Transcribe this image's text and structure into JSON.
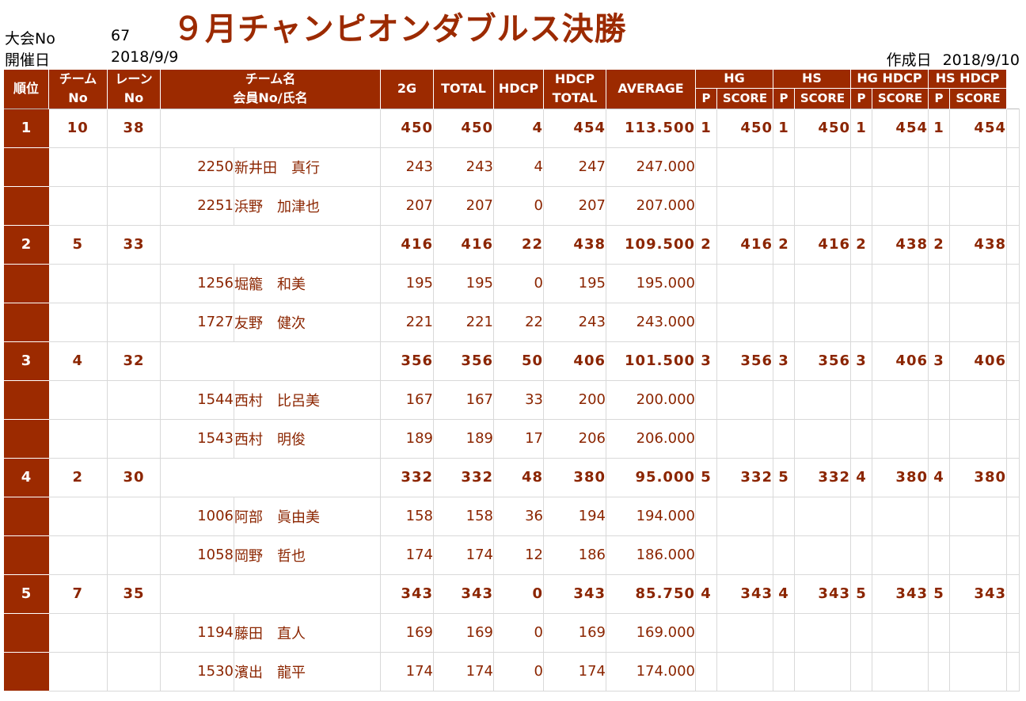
{
  "meta": {
    "event_label": "大会No",
    "event_no": "67",
    "date_label": "開催日",
    "date": "2018/9/9",
    "title": "９月チャンピオンダブルス決勝",
    "created_label": "作成日",
    "created_date": "2018/9/10"
  },
  "headers": {
    "rank": "順位",
    "team_no_top": "チーム",
    "team_no_bottom": "No",
    "lane_top": "レーン",
    "lane_bottom": "No",
    "team_name_top": "チーム名",
    "team_name_bottom": "会員No/氏名",
    "g2": "2G",
    "total": "TOTAL",
    "hdcp": "HDCP",
    "hdcp_total_top": "HDCP",
    "hdcp_total_bottom": "TOTAL",
    "average": "AVERAGE",
    "hg": "HG",
    "hs": "HS",
    "hg_hdcp": "HG HDCP",
    "hs_hdcp": "HS HDCP",
    "p": "P",
    "score": "SCORE"
  },
  "teams": [
    {
      "rank": "1",
      "team_no": "10",
      "lane": "38",
      "g2": "450",
      "total": "450",
      "hdcp": "4",
      "hdcp_total": "454",
      "average": "113.500",
      "hg_p": "1",
      "hg_score": "450",
      "hs_p": "1",
      "hs_score": "450",
      "hghd_p": "1",
      "hghd_score": "454",
      "hshd_p": "1",
      "hshd_score": "454",
      "members": [
        {
          "no": "2250",
          "name": "新井田　真行",
          "g2": "243",
          "total": "243",
          "hdcp": "4",
          "hdcp_total": "247",
          "average": "247.000"
        },
        {
          "no": "2251",
          "name": "浜野　加津也",
          "g2": "207",
          "total": "207",
          "hdcp": "0",
          "hdcp_total": "207",
          "average": "207.000"
        }
      ]
    },
    {
      "rank": "2",
      "team_no": "5",
      "lane": "33",
      "g2": "416",
      "total": "416",
      "hdcp": "22",
      "hdcp_total": "438",
      "average": "109.500",
      "hg_p": "2",
      "hg_score": "416",
      "hs_p": "2",
      "hs_score": "416",
      "hghd_p": "2",
      "hghd_score": "438",
      "hshd_p": "2",
      "hshd_score": "438",
      "members": [
        {
          "no": "1256",
          "name": "堀籠　和美",
          "g2": "195",
          "total": "195",
          "hdcp": "0",
          "hdcp_total": "195",
          "average": "195.000"
        },
        {
          "no": "1727",
          "name": "友野　健次",
          "g2": "221",
          "total": "221",
          "hdcp": "22",
          "hdcp_total": "243",
          "average": "243.000"
        }
      ]
    },
    {
      "rank": "3",
      "team_no": "4",
      "lane": "32",
      "g2": "356",
      "total": "356",
      "hdcp": "50",
      "hdcp_total": "406",
      "average": "101.500",
      "hg_p": "3",
      "hg_score": "356",
      "hs_p": "3",
      "hs_score": "356",
      "hghd_p": "3",
      "hghd_score": "406",
      "hshd_p": "3",
      "hshd_score": "406",
      "members": [
        {
          "no": "1544",
          "name": "西村　比呂美",
          "g2": "167",
          "total": "167",
          "hdcp": "33",
          "hdcp_total": "200",
          "average": "200.000"
        },
        {
          "no": "1543",
          "name": "西村　明俊",
          "g2": "189",
          "total": "189",
          "hdcp": "17",
          "hdcp_total": "206",
          "average": "206.000"
        }
      ]
    },
    {
      "rank": "4",
      "team_no": "2",
      "lane": "30",
      "g2": "332",
      "total": "332",
      "hdcp": "48",
      "hdcp_total": "380",
      "average": "95.000",
      "hg_p": "5",
      "hg_score": "332",
      "hs_p": "5",
      "hs_score": "332",
      "hghd_p": "4",
      "hghd_score": "380",
      "hshd_p": "4",
      "hshd_score": "380",
      "members": [
        {
          "no": "1006",
          "name": "阿部　眞由美",
          "g2": "158",
          "total": "158",
          "hdcp": "36",
          "hdcp_total": "194",
          "average": "194.000"
        },
        {
          "no": "1058",
          "name": "岡野　哲也",
          "g2": "174",
          "total": "174",
          "hdcp": "12",
          "hdcp_total": "186",
          "average": "186.000"
        }
      ]
    },
    {
      "rank": "5",
      "team_no": "7",
      "lane": "35",
      "g2": "343",
      "total": "343",
      "hdcp": "0",
      "hdcp_total": "343",
      "average": "85.750",
      "hg_p": "4",
      "hg_score": "343",
      "hs_p": "4",
      "hs_score": "343",
      "hghd_p": "5",
      "hghd_score": "343",
      "hshd_p": "5",
      "hshd_score": "343",
      "members": [
        {
          "no": "1194",
          "name": "藤田　直人",
          "g2": "169",
          "total": "169",
          "hdcp": "0",
          "hdcp_total": "169",
          "average": "169.000"
        },
        {
          "no": "1530",
          "name": "濱出　龍平",
          "g2": "174",
          "total": "174",
          "hdcp": "0",
          "hdcp_total": "174",
          "average": "174.000"
        }
      ]
    }
  ]
}
